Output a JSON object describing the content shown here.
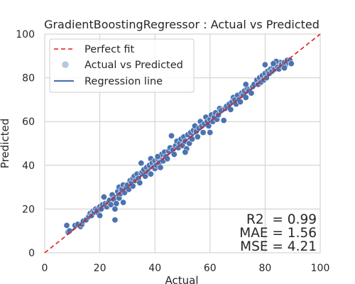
{
  "chart_data": {
    "type": "scatter",
    "title": "GradientBoostingRegressor : Actual vs Predicted",
    "xlabel": "Actual",
    "ylabel": "Predicted",
    "xlim": [
      0,
      100
    ],
    "ylim": [
      0,
      100
    ],
    "xticks": [
      "0",
      "20",
      "40",
      "60",
      "80",
      "100"
    ],
    "yticks": [
      "0",
      "20",
      "40",
      "60",
      "80",
      "100"
    ],
    "grid": true,
    "legend_position": "upper-left",
    "legend": [
      {
        "label": "Perfect fit",
        "style": "dashed-line",
        "color": "#e41a1c"
      },
      {
        "label": "Actual vs Predicted",
        "style": "marker",
        "color": "#4c72b0"
      },
      {
        "label": "Regression line",
        "style": "solid-line",
        "color": "#4c72b0"
      }
    ],
    "perfect_fit": {
      "x": [
        0,
        100
      ],
      "y": [
        0,
        100
      ]
    },
    "regression": {
      "slope": 0.99,
      "intercept": 0.5
    },
    "metrics": [
      "R2  = 0.99",
      "MAE = 1.56",
      "MSE = 4.21"
    ],
    "points": [
      [
        8,
        12.5
      ],
      [
        8.5,
        9.5
      ],
      [
        9,
        10
      ],
      [
        11,
        12.5
      ],
      [
        12,
        13
      ],
      [
        13,
        12
      ],
      [
        13.5,
        13
      ],
      [
        14,
        14.5
      ],
      [
        15,
        15
      ],
      [
        16,
        16.5
      ],
      [
        16.5,
        18
      ],
      [
        17,
        17
      ],
      [
        17.5,
        19
      ],
      [
        18,
        18.5
      ],
      [
        18.5,
        20
      ],
      [
        19,
        19.5
      ],
      [
        19.5,
        18
      ],
      [
        20,
        21
      ],
      [
        20,
        17
      ],
      [
        20.5,
        20
      ],
      [
        21,
        22
      ],
      [
        21.5,
        25.5
      ],
      [
        22,
        22.5
      ],
      [
        22.5,
        21
      ],
      [
        23,
        23
      ],
      [
        23.5,
        24
      ],
      [
        24,
        22
      ],
      [
        24.5,
        26.5
      ],
      [
        25,
        24.5
      ],
      [
        25.5,
        20
      ],
      [
        25.5,
        15
      ],
      [
        26,
        22.5
      ],
      [
        26.5,
        28
      ],
      [
        27,
        25
      ],
      [
        27,
        30
      ],
      [
        27.5,
        27
      ],
      [
        28,
        29
      ],
      [
        28.5,
        23
      ],
      [
        28.5,
        31
      ],
      [
        29,
        27.5
      ],
      [
        29.5,
        30
      ],
      [
        30,
        31
      ],
      [
        30.5,
        29
      ],
      [
        31,
        33
      ],
      [
        31.5,
        32
      ],
      [
        32,
        34
      ],
      [
        32,
        30.5
      ],
      [
        32.5,
        35
      ],
      [
        33,
        33
      ],
      [
        33.5,
        36
      ],
      [
        34,
        34
      ],
      [
        34.5,
        32
      ],
      [
        35,
        36.5
      ],
      [
        35,
        41
      ],
      [
        35.5,
        37
      ],
      [
        36,
        38
      ],
      [
        36.5,
        35
      ],
      [
        37,
        39
      ],
      [
        37.5,
        37
      ],
      [
        38,
        40
      ],
      [
        38.5,
        36
      ],
      [
        38.5,
        43
      ],
      [
        39,
        41
      ],
      [
        39.5,
        39
      ],
      [
        40,
        42
      ],
      [
        40,
        38.5
      ],
      [
        40.5,
        40
      ],
      [
        41,
        43
      ],
      [
        41.5,
        41
      ],
      [
        42,
        39
      ],
      [
        42,
        44
      ],
      [
        42.5,
        45
      ],
      [
        43,
        42
      ],
      [
        43.5,
        46
      ],
      [
        44,
        44
      ],
      [
        44.5,
        43
      ],
      [
        45,
        46.5
      ],
      [
        45.5,
        48
      ],
      [
        46,
        53.5
      ],
      [
        46.5,
        47
      ],
      [
        47,
        45
      ],
      [
        47.5,
        49
      ],
      [
        48,
        51
      ],
      [
        48.5,
        48
      ],
      [
        49,
        50
      ],
      [
        49.5,
        52
      ],
      [
        50,
        49
      ],
      [
        50.5,
        53
      ],
      [
        51,
        51
      ],
      [
        51.5,
        47.5
      ],
      [
        52,
        54
      ],
      [
        52.5,
        50
      ],
      [
        53,
        55
      ],
      [
        53.5,
        52
      ],
      [
        54,
        56
      ],
      [
        54.5,
        58
      ],
      [
        55,
        55.5
      ],
      [
        55.5,
        53
      ],
      [
        56,
        57
      ],
      [
        56.5,
        60
      ],
      [
        57,
        58
      ],
      [
        57.5,
        55
      ],
      [
        58,
        59
      ],
      [
        58.5,
        62
      ],
      [
        59,
        60
      ],
      [
        59.5,
        58
      ],
      [
        60,
        61
      ],
      [
        60.5,
        63
      ],
      [
        61,
        60
      ],
      [
        61.5,
        62
      ],
      [
        62,
        64
      ],
      [
        62.5,
        61
      ],
      [
        63,
        63
      ],
      [
        63.5,
        66
      ],
      [
        64,
        65
      ],
      [
        65,
        60.5
      ],
      [
        65.5,
        66
      ],
      [
        66,
        67
      ],
      [
        67,
        68
      ],
      [
        67.5,
        65.5
      ],
      [
        68,
        69
      ],
      [
        68.5,
        71
      ],
      [
        69,
        70
      ],
      [
        69.5,
        68
      ],
      [
        70,
        72
      ],
      [
        70.5,
        70
      ],
      [
        71,
        69
      ],
      [
        71.5,
        73
      ],
      [
        72,
        72
      ],
      [
        72.5,
        74
      ],
      [
        73,
        71
      ],
      [
        73.5,
        75
      ],
      [
        74,
        74
      ],
      [
        75,
        73
      ],
      [
        75.5,
        76
      ],
      [
        76,
        77
      ],
      [
        77,
        79
      ],
      [
        77.5,
        77
      ],
      [
        78,
        80
      ],
      [
        78.5,
        78
      ],
      [
        79,
        81
      ],
      [
        79.5,
        79
      ],
      [
        80,
        82
      ],
      [
        80.5,
        80
      ],
      [
        81,
        83
      ],
      [
        81.5,
        82
      ],
      [
        82,
        84
      ],
      [
        82.5,
        83
      ],
      [
        83,
        85
      ],
      [
        83.5,
        84
      ],
      [
        84,
        86
      ],
      [
        84.5,
        85
      ],
      [
        85,
        84
      ],
      [
        85.5,
        87
      ],
      [
        86,
        86
      ],
      [
        86.5,
        85
      ],
      [
        87,
        87
      ],
      [
        87.5,
        86
      ],
      [
        88,
        88
      ],
      [
        88.5,
        87
      ],
      [
        89,
        88
      ],
      [
        89.5,
        86.5
      ],
      [
        84,
        87.5
      ],
      [
        60,
        55
      ],
      [
        51,
        46
      ],
      [
        80,
        86
      ],
      [
        41,
        44
      ],
      [
        73,
        77
      ],
      [
        87,
        84.5
      ],
      [
        83,
        86.5
      ]
    ]
  }
}
